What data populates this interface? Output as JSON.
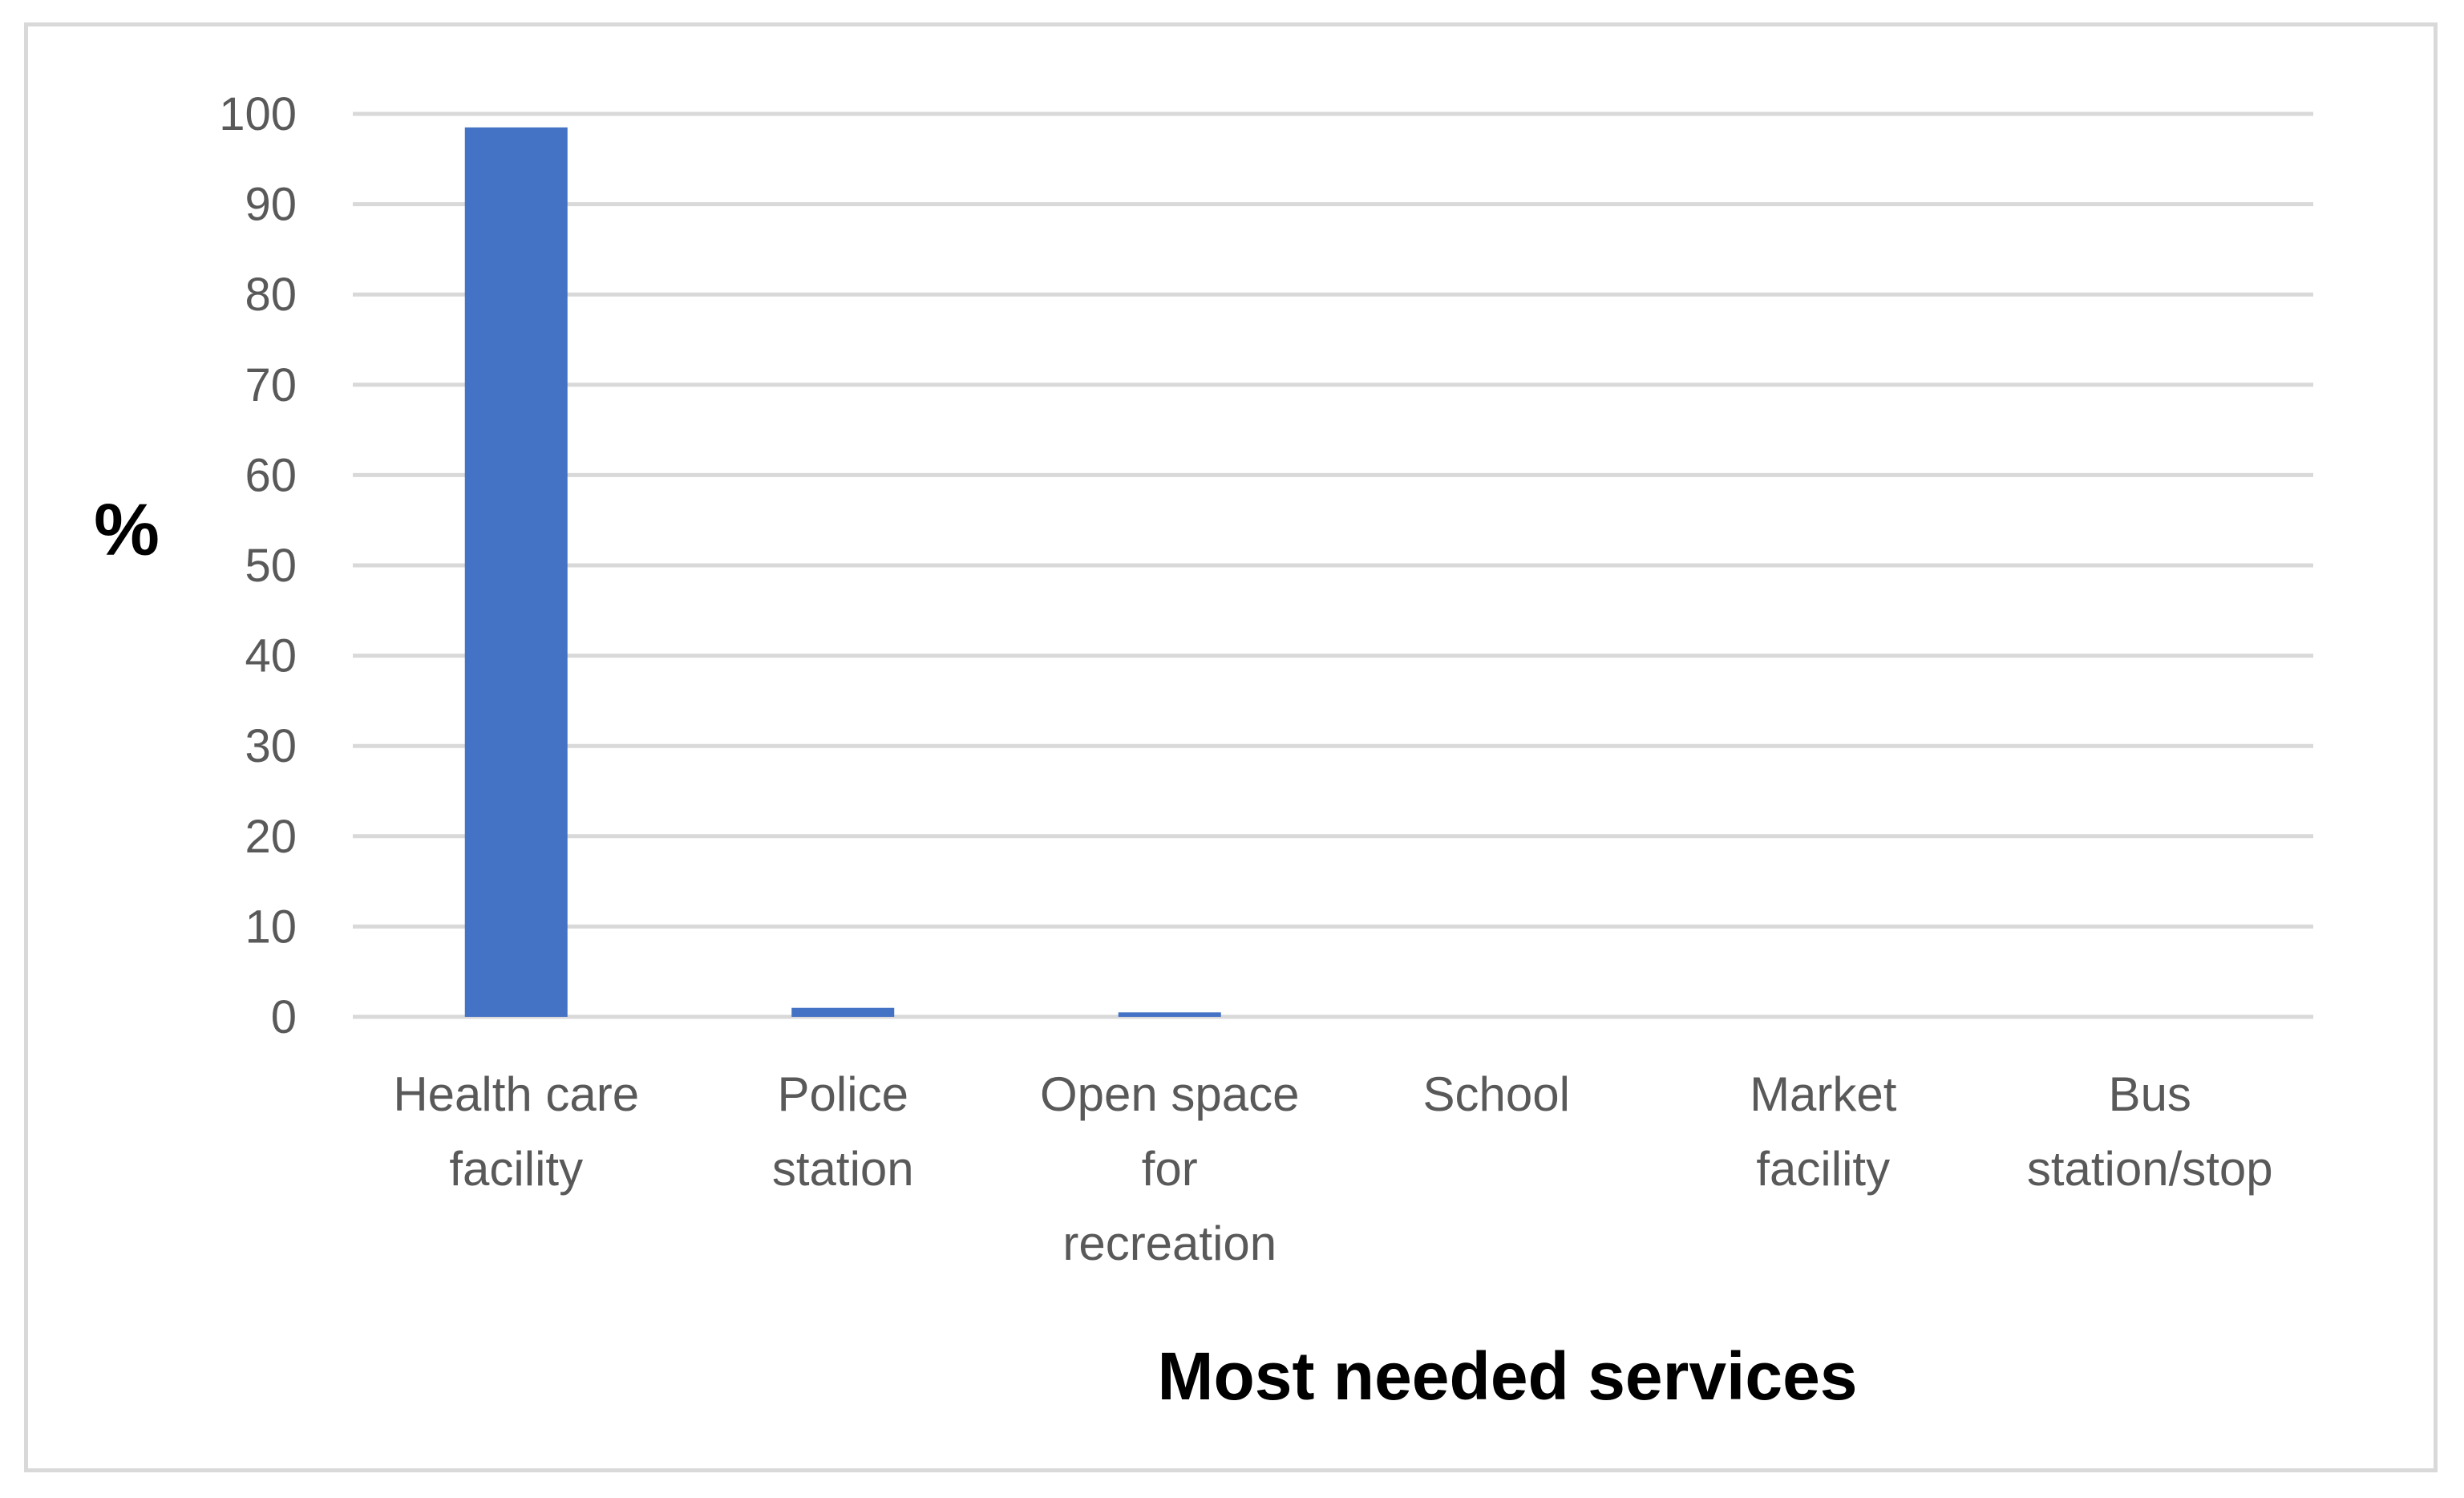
{
  "chart_data": {
    "type": "bar",
    "categories": [
      [
        "Health care",
        "facility"
      ],
      [
        "Police",
        "station"
      ],
      [
        "Open space",
        "for",
        "recreation"
      ],
      [
        "School"
      ],
      [
        "Market",
        "facility"
      ],
      [
        "Bus",
        "station/stop"
      ]
    ],
    "values": [
      98.5,
      1.0,
      0.5,
      0,
      0,
      0
    ],
    "xlabel": "Most needed services",
    "ylabel": "%",
    "ylim": [
      0,
      100
    ],
    "yticks": [
      "0",
      "10",
      "20",
      "30",
      "40",
      "50",
      "60",
      "70",
      "80",
      "90",
      "100"
    ],
    "grid": true,
    "bar_color": "#4472c4",
    "grid_color": "#d9d9d9"
  }
}
